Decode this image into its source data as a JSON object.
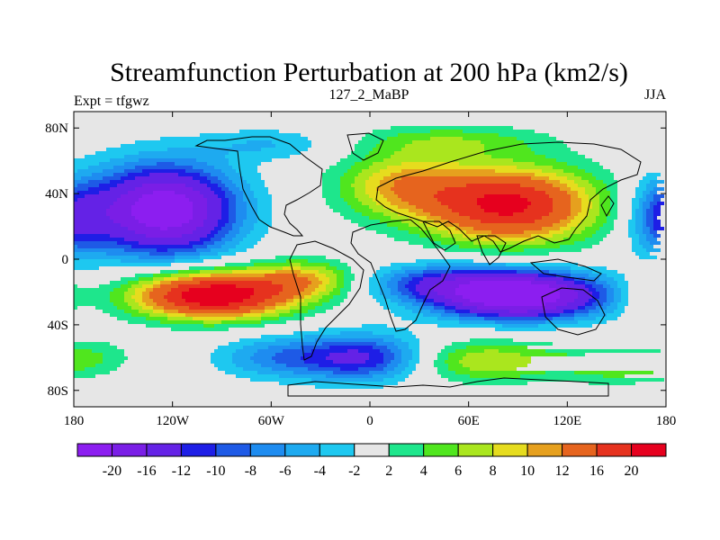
{
  "chart_data": {
    "type": "heatmap",
    "title": "Streamfunction Perturbation at 200 hPa (km2/s)",
    "left_string": "Expt = tfgwz",
    "center_string": "127_2_MaBP",
    "right_string": "JJA",
    "xlim": [
      -180,
      180
    ],
    "ylim": [
      -90,
      90
    ],
    "xticks": [
      {
        "value": -180,
        "label": "180"
      },
      {
        "value": -120,
        "label": "120W"
      },
      {
        "value": -60,
        "label": "60W"
      },
      {
        "value": 0,
        "label": "0"
      },
      {
        "value": 60,
        "label": "60E"
      },
      {
        "value": 120,
        "label": "120E"
      },
      {
        "value": 180,
        "label": "180"
      }
    ],
    "yticks": [
      {
        "value": 80,
        "label": "80N"
      },
      {
        "value": 40,
        "label": "40N"
      },
      {
        "value": 0,
        "label": "0"
      },
      {
        "value": -40,
        "label": "40S"
      },
      {
        "value": -80,
        "label": "80S"
      }
    ],
    "levels": [
      -20,
      -16,
      -12,
      -10,
      -8,
      -6,
      -4,
      -2,
      2,
      4,
      6,
      8,
      10,
      12,
      16,
      20
    ],
    "colors": [
      "#8c1ef0",
      "#7a1ee6",
      "#6422e6",
      "#1e1ee6",
      "#1e5ae6",
      "#1e8cf0",
      "#1eaaf0",
      "#1ec8f0",
      "#e6e6e6",
      "#1ee68c",
      "#50e61e",
      "#aae61e",
      "#e6dc1e",
      "#e6a01e",
      "#e6641e",
      "#e6321e",
      "#e6001e"
    ],
    "colorbar_labels": [
      "-20",
      "-16",
      "-12",
      "-10",
      "-8",
      "-6",
      "-4",
      "-2",
      "2",
      "4",
      "6",
      "8",
      "10",
      "12",
      "16",
      "20"
    ],
    "field_centers": [
      {
        "lon": -125,
        "lat": 30,
        "amp": -24,
        "slon": 30,
        "slat": 19
      },
      {
        "lon": -95,
        "lat": -22,
        "amp": 24,
        "slon": 34,
        "slat": 10
      },
      {
        "lon": -40,
        "lat": -12,
        "amp": 9,
        "slon": 22,
        "slat": 8
      },
      {
        "lon": 85,
        "lat": 33,
        "amp": 21,
        "slon": 36,
        "slat": 16
      },
      {
        "lon": 20,
        "lat": 45,
        "amp": 10,
        "slon": 28,
        "slat": 14
      },
      {
        "lon": 90,
        "lat": -22,
        "amp": -26,
        "slon": 36,
        "slat": 10
      },
      {
        "lon": 40,
        "lat": -14,
        "amp": -8,
        "slon": 30,
        "slat": 8
      },
      {
        "lon": -5,
        "lat": -60,
        "amp": -13,
        "slon": 28,
        "slat": 10
      },
      {
        "lon": -60,
        "lat": -60,
        "amp": -6,
        "slon": 25,
        "slat": 9
      },
      {
        "lon": 70,
        "lat": -62,
        "amp": 8,
        "slon": 35,
        "slat": 9
      },
      {
        "lon": 150,
        "lat": -65,
        "amp": 5,
        "slon": 22,
        "slat": 8
      },
      {
        "lon": -170,
        "lat": -60,
        "amp": 4,
        "slon": 18,
        "slat": 8
      },
      {
        "lon": 180,
        "lat": 25,
        "amp": -10,
        "slon": 15,
        "slat": 16
      },
      {
        "lon": -60,
        "lat": 70,
        "amp": -4,
        "slon": 30,
        "slat": 7
      },
      {
        "lon": 50,
        "lat": 72,
        "amp": 5,
        "slon": 40,
        "slat": 7
      },
      {
        "lon": 170,
        "lat": -22,
        "amp": 5,
        "slon": 12,
        "slat": 8
      }
    ]
  }
}
